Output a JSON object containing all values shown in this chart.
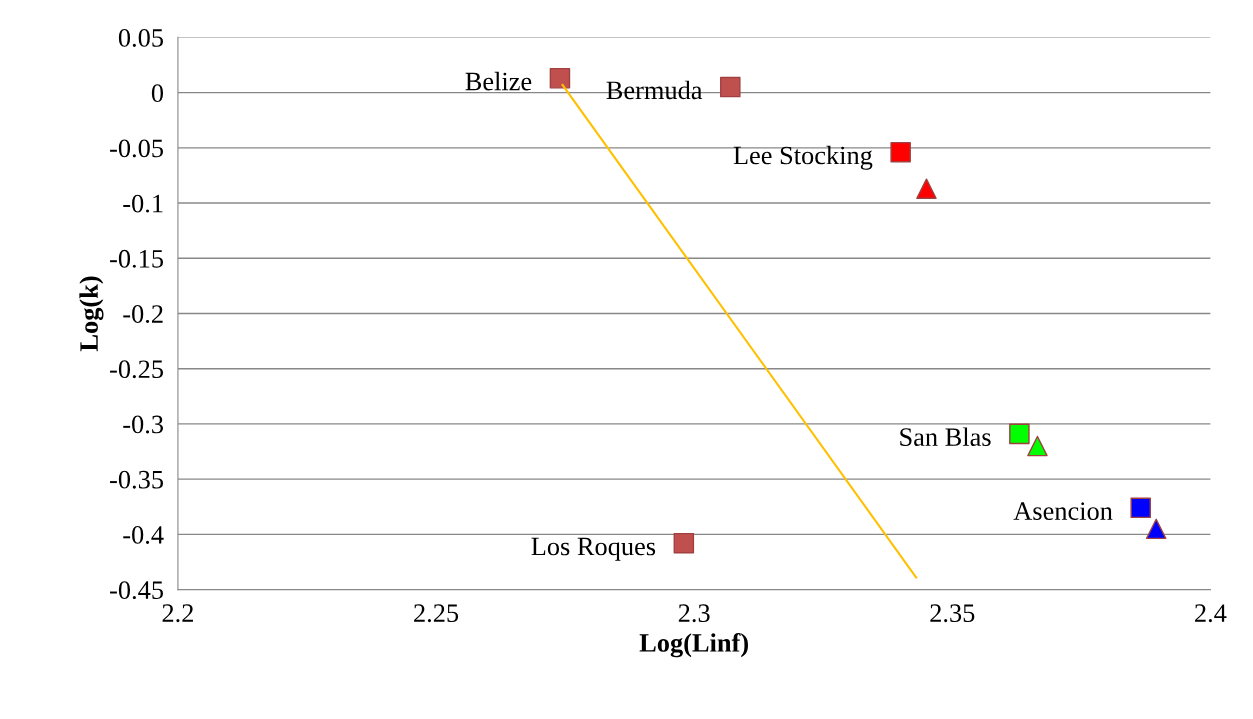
{
  "chart_data": {
    "type": "scatter",
    "xlabel": "Log(Linf)",
    "ylabel": "Log(k)",
    "xlim": [
      2.2,
      2.4
    ],
    "xticks": [
      2.2,
      2.25,
      2.3,
      2.35,
      2.4
    ],
    "ylim": [
      -0.45,
      0.05
    ],
    "yticks": [
      -0.45,
      -0.4,
      -0.35,
      -0.3,
      -0.25,
      -0.2,
      -0.15,
      -0.1,
      -0.05,
      0,
      0.05
    ],
    "grid": "y",
    "legend": false,
    "series": [
      {
        "marker": "square",
        "color": "#c0504d",
        "x": [
          2.274,
          2.307,
          2.298
        ],
        "values": [
          0.013,
          0.005,
          -0.408
        ]
      },
      {
        "marker": "square",
        "color": "#ff0000",
        "x": [
          2.34
        ],
        "values": [
          -0.054
        ]
      },
      {
        "marker": "triangle",
        "color": "#ff0000",
        "x": [
          2.345
        ],
        "values": [
          -0.087
        ]
      },
      {
        "marker": "square",
        "color": "#00ff00",
        "x": [
          2.363
        ],
        "values": [
          -0.309
        ]
      },
      {
        "marker": "triangle",
        "color": "#00ff00",
        "x": [
          2.3665
        ],
        "values": [
          -0.32
        ]
      },
      {
        "marker": "square",
        "color": "#0000ff",
        "x": [
          2.3865
        ],
        "values": [
          -0.376
        ]
      },
      {
        "marker": "triangle",
        "color": "#0000ff",
        "x": [
          2.3895
        ],
        "values": [
          -0.395
        ]
      },
      {
        "type": "line",
        "marker": "none",
        "color": "#ffc000",
        "x": [
          2.2745,
          2.343
        ],
        "values": [
          0.007,
          -0.439
        ]
      }
    ],
    "annotations": [
      {
        "text": "Belize",
        "x": 2.274,
        "y": 0.013
      },
      {
        "text": "Bermuda",
        "x": 2.307,
        "y": 0.005
      },
      {
        "text": "Lee Stocking",
        "x": 2.34,
        "y": -0.054
      },
      {
        "text": "San Blas",
        "x": 2.363,
        "y": -0.309
      },
      {
        "text": "Asencion",
        "x": 2.3865,
        "y": -0.376
      },
      {
        "text": "Los Roques",
        "x": 2.298,
        "y": -0.408
      }
    ]
  }
}
